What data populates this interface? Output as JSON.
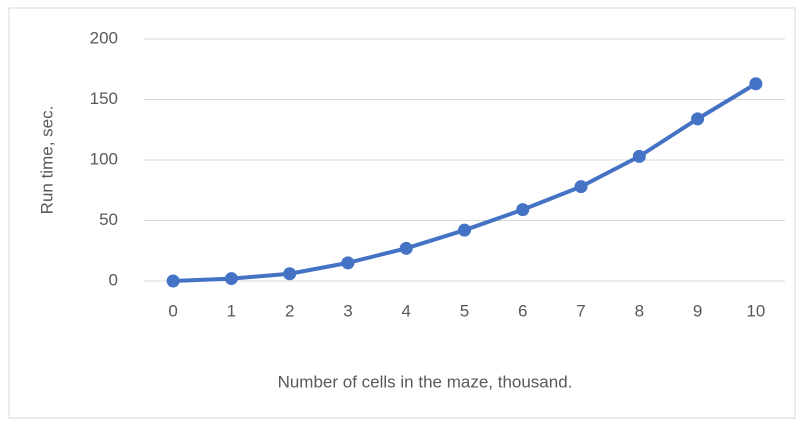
{
  "chart_data": {
    "type": "line",
    "x_label": "Number of cells in the maze, thousand.",
    "y_label": "Run time, sec.",
    "categories": [
      "0",
      "1",
      "2",
      "3",
      "4",
      "5",
      "6",
      "7",
      "8",
      "9",
      "10"
    ],
    "series": [
      {
        "color": "#4472c4",
        "values": [
          0,
          2,
          6,
          15,
          27,
          42,
          59,
          78,
          103,
          134,
          163
        ]
      }
    ],
    "ylim": [
      0,
      200
    ],
    "yticks": [
      0,
      50,
      100,
      150,
      200
    ],
    "grid": true
  }
}
